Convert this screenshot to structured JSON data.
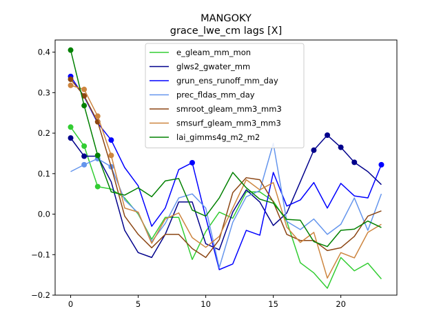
{
  "chart_data": {
    "type": "line",
    "title": "MANGOKY",
    "subtitle": "grace_lwe_cm lags [X]",
    "xlabel": "",
    "ylabel": "",
    "xlim": [
      -1.15,
      24.15
    ],
    "ylim": [
      -0.2,
      0.43
    ],
    "xticks": [
      0,
      5,
      10,
      15,
      20
    ],
    "yticks": [
      -0.2,
      -0.1,
      0.0,
      0.1,
      0.2,
      0.3,
      0.4
    ],
    "ytick_labels": [
      "−0.2",
      "−0.1",
      "0.0",
      "0.1",
      "0.2",
      "0.3",
      "0.4"
    ],
    "grid": false,
    "legend_position": "upper center",
    "x": [
      0,
      1,
      2,
      3,
      4,
      5,
      6,
      7,
      8,
      9,
      10,
      11,
      12,
      13,
      14,
      15,
      16,
      17,
      18,
      19,
      20,
      21,
      22,
      23
    ],
    "series": [
      {
        "name": "e_gleam_mm_mon",
        "color": "#32cd32",
        "values": [
          0.215,
          0.168,
          0.068,
          0.062,
          0.04,
          0.0,
          -0.062,
          -0.008,
          -0.008,
          -0.112,
          -0.043,
          0.005,
          -0.01,
          0.055,
          0.055,
          0.032,
          -0.018,
          -0.12,
          -0.145,
          -0.183,
          -0.107,
          -0.14,
          -0.121,
          -0.16
        ],
        "markers": [
          0,
          1,
          2
        ]
      },
      {
        "name": "glws2_gwater_mm",
        "color": "#00008b",
        "values": [
          0.188,
          0.143,
          0.143,
          0.08,
          -0.04,
          -0.095,
          -0.107,
          -0.05,
          0.03,
          0.03,
          -0.073,
          -0.088,
          0.005,
          0.06,
          0.03,
          -0.028,
          0.003,
          0.08,
          0.158,
          0.195,
          0.165,
          0.128,
          0.105,
          0.073
        ],
        "markers": [
          0,
          1,
          18,
          19,
          20,
          21
        ]
      },
      {
        "name": "grun_ens_runoff_mm_day",
        "color": "#0000ff",
        "values": [
          0.34,
          0.29,
          0.225,
          0.183,
          0.115,
          0.07,
          -0.03,
          0.015,
          0.11,
          0.127,
          -0.008,
          -0.137,
          -0.123,
          -0.04,
          -0.052,
          0.103,
          0.02,
          0.035,
          0.078,
          0.015,
          0.076,
          0.045,
          0.04,
          0.122
        ],
        "markers": [
          0,
          3,
          9,
          23
        ]
      },
      {
        "name": "prec_fldas_mm_day",
        "color": "#6495ed",
        "values": [
          0.105,
          0.122,
          0.137,
          0.117,
          0.035,
          0.003,
          -0.068,
          -0.023,
          0.04,
          0.05,
          0.015,
          -0.132,
          -0.02,
          0.043,
          0.058,
          0.175,
          -0.018,
          -0.038,
          -0.012,
          -0.05,
          -0.025,
          0.04,
          -0.04,
          0.05
        ],
        "markers": [
          1,
          2,
          3
        ]
      },
      {
        "name": "smroot_gleam_mm3_mm3",
        "color": "#8b4513",
        "values": [
          0.333,
          0.292,
          0.228,
          0.117,
          -0.005,
          -0.05,
          -0.083,
          -0.05,
          -0.05,
          -0.085,
          -0.107,
          -0.063,
          0.053,
          0.09,
          0.085,
          0.03,
          -0.05,
          -0.065,
          -0.065,
          -0.09,
          -0.083,
          -0.055,
          -0.005,
          0.008
        ],
        "markers": [
          0,
          1,
          2
        ]
      },
      {
        "name": "smsurf_gleam_mm3_mm3",
        "color": "#cd853f",
        "values": [
          0.318,
          0.308,
          0.242,
          0.145,
          0.015,
          0.005,
          -0.072,
          -0.012,
          0.003,
          -0.058,
          -0.082,
          -0.055,
          0.015,
          0.085,
          0.06,
          0.078,
          -0.032,
          -0.07,
          -0.045,
          -0.158,
          -0.095,
          -0.108,
          -0.045,
          -0.025
        ],
        "markers": [
          0,
          1,
          2,
          3
        ]
      },
      {
        "name": "lai_gimms4g_m2_m2",
        "color": "#008000",
        "values": [
          0.405,
          0.268,
          0.145,
          0.055,
          0.047,
          0.065,
          0.043,
          0.082,
          0.088,
          0.01,
          -0.005,
          0.04,
          0.103,
          0.065,
          0.037,
          0.027,
          -0.013,
          -0.015,
          -0.068,
          -0.08,
          -0.04,
          -0.037,
          -0.017,
          -0.033
        ],
        "markers": [
          0,
          1,
          2
        ]
      }
    ]
  }
}
